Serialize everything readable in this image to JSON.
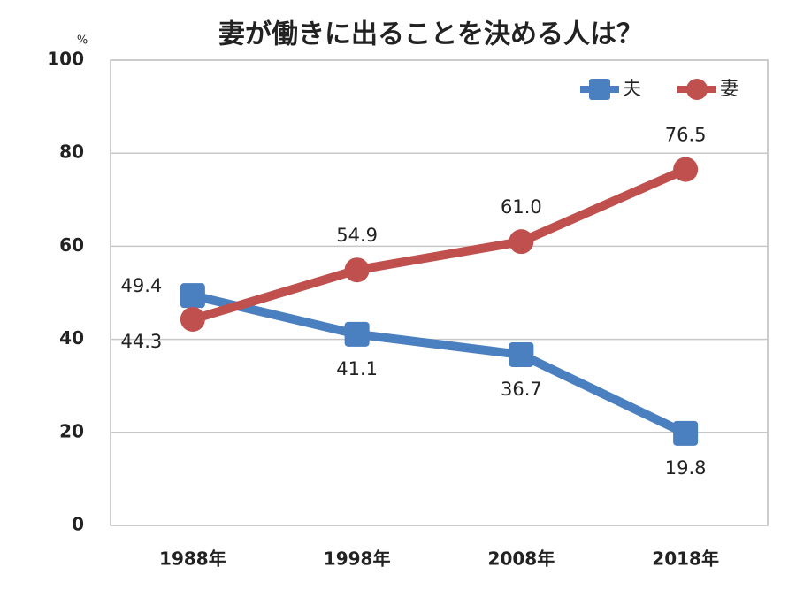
{
  "chart_data": {
    "type": "line",
    "title": "妻が働きに出ることを決める人は？",
    "y_unit": "%",
    "categories": [
      "1988年",
      "1998年",
      "2008年",
      "2018年"
    ],
    "series": [
      {
        "name": "夫",
        "color": "#4a7fc0",
        "marker": "square",
        "values": [
          49.4,
          41.1,
          36.7,
          19.8
        ],
        "value_labels": [
          "49.4",
          "41.1",
          "36.7",
          "19.8"
        ]
      },
      {
        "name": "妻",
        "color": "#c0504d",
        "marker": "circle",
        "values": [
          44.3,
          54.9,
          61.0,
          76.5
        ],
        "value_labels": [
          "44.3",
          "54.9",
          "61.0",
          "76.5"
        ]
      }
    ],
    "ylim": [
      0,
      100
    ],
    "yticks": [
      0,
      20,
      40,
      60,
      80,
      100
    ],
    "grid": true,
    "legend": "top-right"
  }
}
